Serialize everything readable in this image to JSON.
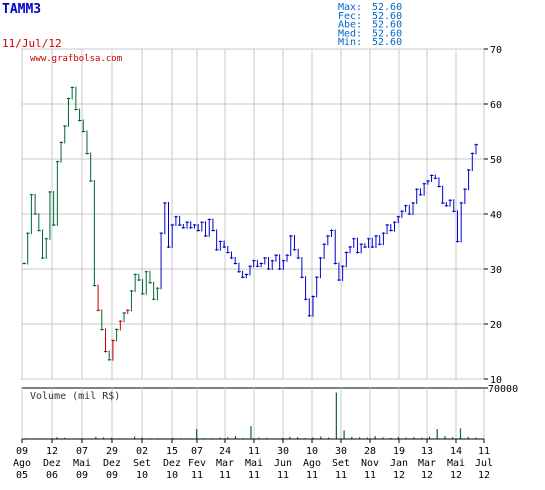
{
  "ticker": "TAMM3",
  "date": "11/Jul/12",
  "watermark": "www.grafbolsa.com",
  "stats": [
    {
      "label": "Max:",
      "value": "52.60"
    },
    {
      "label": "Fec:",
      "value": "52.60"
    },
    {
      "label": "Abe:",
      "value": "52.60"
    },
    {
      "label": "Med:",
      "value": "52.60"
    },
    {
      "label": "Min:",
      "value": "52.60"
    }
  ],
  "colors": {
    "ticker": "#0000cc",
    "date": "#cc0000",
    "stats": "#0066cc",
    "price_up": "#0000cc",
    "price_early": "#006633",
    "price_down": "#cc0000",
    "volume": "#006633",
    "grid": "#c8c8c8",
    "axis": "#000000"
  },
  "chart_data": [
    {
      "type": "line",
      "title": "TAMM3",
      "ylim": [
        10,
        70
      ],
      "yticks": [
        "10",
        "20",
        "30",
        "40",
        "50",
        "60",
        "70"
      ],
      "xtick_labels": [
        {
          "day": "09",
          "mon": "Ago",
          "yr": "05"
        },
        {
          "day": "12",
          "mon": "Dez",
          "yr": "06"
        },
        {
          "day": "07",
          "mon": "Mai",
          "yr": "09"
        },
        {
          "day": "29",
          "mon": "Dez",
          "yr": "09"
        },
        {
          "day": "02",
          "mon": "Set",
          "yr": "10"
        },
        {
          "day": "15",
          "mon": "Dez",
          "yr": "10"
        },
        {
          "day": "07",
          "mon": "Fev",
          "yr": "11"
        },
        {
          "day": "24",
          "mon": "Mar",
          "yr": "11"
        },
        {
          "day": "11",
          "mon": "Mai",
          "yr": "11"
        },
        {
          "day": "30",
          "mon": "Jun",
          "yr": "11"
        },
        {
          "day": "10",
          "mon": "Ago",
          "yr": "11"
        },
        {
          "day": "30",
          "mon": "Set",
          "yr": "11"
        },
        {
          "day": "28",
          "mon": "Nov",
          "yr": "11"
        },
        {
          "day": "19",
          "mon": "Jan",
          "yr": "12"
        },
        {
          "day": "13",
          "mon": "Mar",
          "yr": "12"
        },
        {
          "day": "14",
          "mon": "Mai",
          "yr": "12"
        },
        {
          "day": "11",
          "mon": "Jul",
          "yr": "12"
        }
      ],
      "grid": true,
      "series": [
        {
          "values": [
            31.0,
            36.5,
            43.5,
            40.0,
            37.0,
            32.0,
            35.5,
            44.0,
            38.0,
            49.5,
            53.0,
            56.0,
            61.0,
            63.0,
            59.0,
            57.0,
            55.0,
            51.0,
            46.0,
            27.0,
            22.5,
            19.0,
            15.0,
            13.5,
            17.0,
            19.0,
            20.5,
            22.0,
            22.5,
            26.0,
            29.0,
            28.0,
            25.5,
            29.5,
            27.5,
            24.5,
            26.5,
            36.5,
            42.0,
            34.0,
            38.0,
            39.5,
            38.0,
            37.5,
            38.5,
            37.5,
            38.0,
            37.0,
            38.5,
            36.0,
            39.0,
            37.0,
            33.5,
            35.0,
            34.0,
            33.0,
            32.0,
            31.0,
            29.5,
            28.5,
            29.0,
            30.5,
            31.5,
            30.5,
            31.0,
            32.0,
            30.0,
            31.5,
            32.5,
            30.0,
            31.5,
            32.5,
            36.0,
            33.5,
            32.0,
            28.5,
            24.5,
            21.5,
            25.0,
            28.5,
            32.0,
            34.5,
            36.0,
            37.0,
            31.0,
            28.0,
            30.5,
            33.0,
            34.0,
            35.5,
            33.0,
            34.5,
            34.0,
            35.5,
            34.0,
            36.0,
            34.5,
            36.5,
            38.0,
            37.0,
            38.5,
            39.5,
            40.5,
            41.5,
            40.0,
            42.0,
            44.5,
            43.5,
            45.5,
            46.0,
            47.0,
            46.5,
            45.0,
            42.0,
            41.5,
            42.5,
            40.5,
            35.0,
            42.0,
            44.5,
            48.0,
            51.0,
            52.6
          ]
        }
      ]
    },
    {
      "type": "bar",
      "title": "Volume (mil R$)",
      "ylim": [
        0,
        70000
      ],
      "yticks": [
        "70000"
      ],
      "values": [
        1200,
        800,
        500,
        300,
        2500,
        1800,
        600,
        900,
        400,
        3000,
        2200,
        1500,
        700,
        500,
        3500,
        2000,
        1000,
        1200,
        900,
        1500,
        1100,
        800,
        14000,
        1300,
        1000,
        1800,
        2500,
        4000,
        1200,
        18000,
        2000,
        1500,
        1000,
        1400,
        3000,
        2500,
        1200,
        2000,
        3500,
        2000,
        65000,
        12000,
        3000,
        2500,
        1800,
        4000,
        2200,
        1500,
        3000,
        2000,
        2500,
        1800,
        3500,
        14000,
        4000,
        2500,
        15000,
        3000,
        2000
      ]
    }
  ]
}
